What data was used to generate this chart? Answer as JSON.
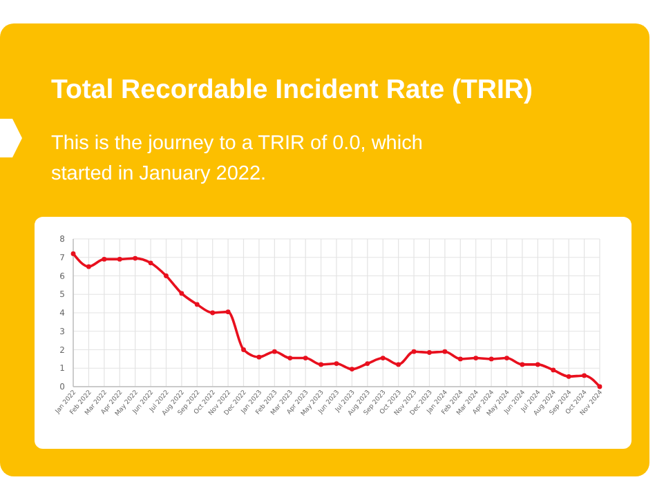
{
  "chart_data": {
    "type": "line",
    "title": "Total Recordable Incident Rate (TRIR)",
    "subtitle": "This is the journey to a TRIR of 0.0, which started in January 2022.",
    "categories": [
      "Jan 2022",
      "Feb 2022",
      "Mar 2022",
      "Apr 2022",
      "May 2022",
      "Jun 2022",
      "Jul 2022",
      "Aug 2022",
      "Sep 2022",
      "Oct 2022",
      "Nov 2022",
      "Dec 2022",
      "Jan 2023",
      "Feb 2023",
      "Mar 2023",
      "Apr 2023",
      "May 2023",
      "Jun 2023",
      "Jul 2023",
      "Aug 2023",
      "Sep 2023",
      "Oct 2023",
      "Nov 2023",
      "Dec 2023",
      "Jan 2024",
      "Feb 2024",
      "Mar 2024",
      "Apr 2024",
      "May 2024",
      "Jun 2024",
      "Jul 2024",
      "Aug 2024",
      "Sep 2024",
      "Oct 2024",
      "Nov 2024"
    ],
    "series": [
      {
        "color": "#e8101e",
        "values": [
          7.2,
          6.5,
          6.9,
          6.9,
          6.95,
          6.7,
          6.0,
          5.05,
          4.45,
          4.0,
          4.05,
          2.0,
          1.6,
          1.9,
          1.55,
          1.55,
          1.2,
          1.25,
          0.95,
          1.25,
          1.55,
          1.2,
          1.9,
          1.85,
          1.9,
          1.5,
          1.55,
          1.5,
          1.55,
          1.2,
          1.2,
          0.9,
          0.55,
          0.6,
          0.0
        ]
      }
    ],
    "ylim": [
      0,
      8
    ],
    "yticks": [
      0,
      1,
      2,
      3,
      4,
      5,
      6,
      7,
      8
    ],
    "grid": true,
    "marker": "circle",
    "line_style": "solid"
  }
}
